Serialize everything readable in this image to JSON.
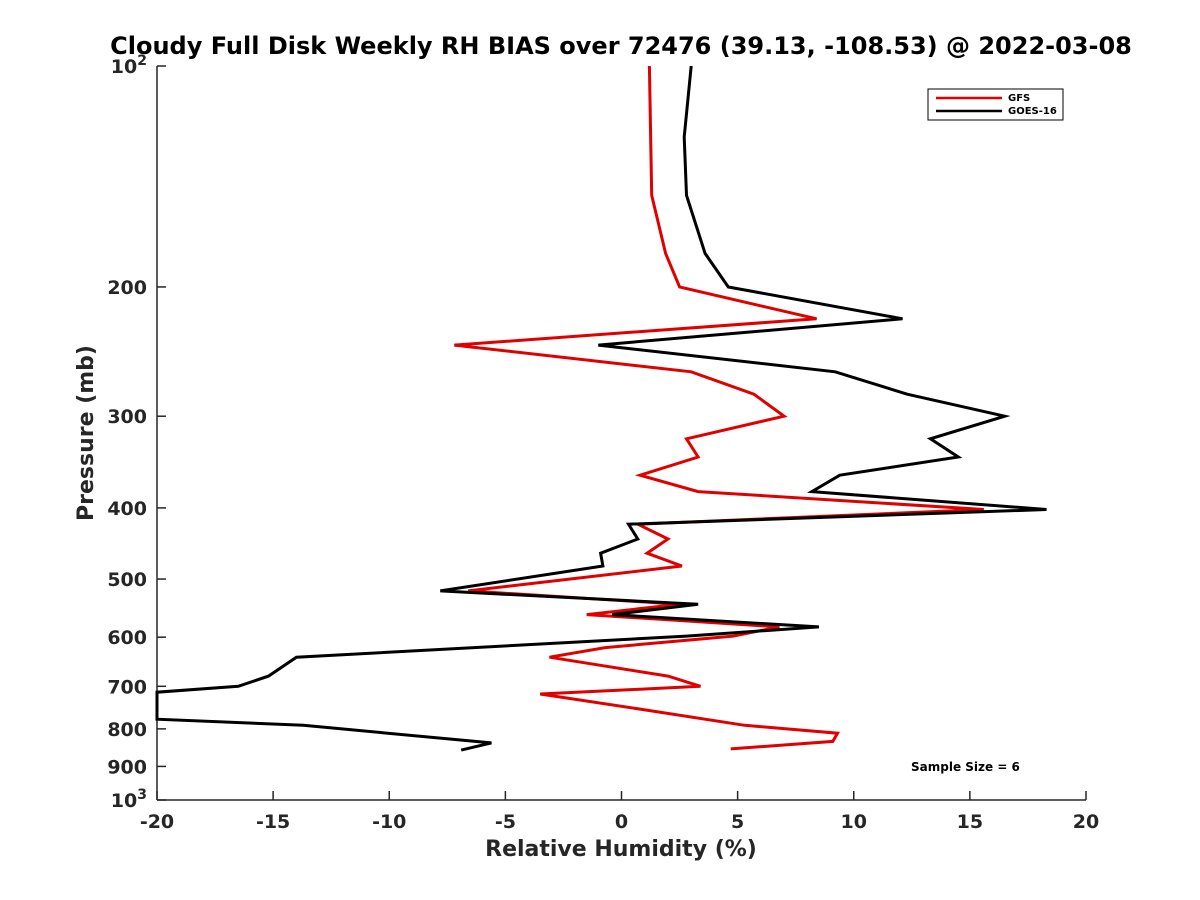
{
  "chart_data": {
    "type": "line",
    "title": "Cloudy Full Disk Weekly RH BIAS over 72476 (39.13, -108.53) @ 2022-03-08",
    "xlabel": "Relative Humidity (%)",
    "ylabel": "Pressure (mb)",
    "xlim": [
      -20,
      20
    ],
    "ylim": [
      100,
      1000
    ],
    "y_scale": "log",
    "y_reversed": true,
    "x_ticks": [
      "-20",
      "-15",
      "-10",
      "-5",
      "0",
      "5",
      "10",
      "15",
      "20"
    ],
    "y_ticks": [
      {
        "value": 100,
        "base": "10",
        "exp": "2"
      },
      {
        "value": 200,
        "label": "200"
      },
      {
        "value": 300,
        "label": "300"
      },
      {
        "value": 400,
        "label": "400"
      },
      {
        "value": 500,
        "label": "500"
      },
      {
        "value": 600,
        "label": "600"
      },
      {
        "value": 700,
        "label": "700"
      },
      {
        "value": 800,
        "label": "800"
      },
      {
        "value": 900,
        "label": "900"
      },
      {
        "value": 1000,
        "base": "10",
        "exp": "3"
      }
    ],
    "grid": false,
    "legend_position": "top-right",
    "series": [
      {
        "name": "GFS",
        "color": "#e00000",
        "points": [
          [
            1.2,
            100
          ],
          [
            1.3,
            150
          ],
          [
            1.9,
            180
          ],
          [
            2.5,
            200
          ],
          [
            8.4,
            221
          ],
          [
            -7.2,
            240
          ],
          [
            3.0,
            261
          ],
          [
            5.7,
            280
          ],
          [
            7.0,
            300
          ],
          [
            2.8,
            322
          ],
          [
            3.3,
            341
          ],
          [
            0.8,
            361
          ],
          [
            3.3,
            380
          ],
          [
            15.6,
            402
          ],
          [
            0.7,
            421
          ],
          [
            2.0,
            441
          ],
          [
            1.1,
            461
          ],
          [
            2.6,
            480
          ],
          [
            -6.6,
            519
          ],
          [
            2.5,
            541
          ],
          [
            -1.5,
            559
          ],
          [
            6.8,
            581
          ],
          [
            4.8,
            598
          ],
          [
            -0.7,
            620
          ],
          [
            -3.1,
            639
          ],
          [
            2.0,
            678
          ],
          [
            3.4,
            700
          ],
          [
            -3.5,
            717
          ],
          [
            0.8,
            752
          ],
          [
            5.3,
            791
          ],
          [
            9.3,
            811
          ],
          [
            9.1,
            832
          ],
          [
            4.7,
            852
          ]
        ]
      },
      {
        "name": "GOES-16",
        "color": "#000000",
        "points": [
          [
            3.0,
            100
          ],
          [
            2.7,
            125
          ],
          [
            2.8,
            150
          ],
          [
            3.6,
            180
          ],
          [
            4.6,
            200
          ],
          [
            12.1,
            221
          ],
          [
            -1.0,
            240
          ],
          [
            9.2,
            261
          ],
          [
            12.3,
            280
          ],
          [
            16.5,
            300
          ],
          [
            13.3,
            322
          ],
          [
            14.5,
            341
          ],
          [
            9.4,
            361
          ],
          [
            8.2,
            380
          ],
          [
            18.3,
            402
          ],
          [
            0.3,
            421
          ],
          [
            0.7,
            441
          ],
          [
            -0.9,
            461
          ],
          [
            -0.8,
            480
          ],
          [
            -7.8,
            519
          ],
          [
            3.3,
            541
          ],
          [
            -0.4,
            559
          ],
          [
            8.5,
            581
          ],
          [
            2.8,
            598
          ],
          [
            -14.0,
            639
          ],
          [
            -15.2,
            678
          ],
          [
            -16.5,
            700
          ],
          [
            -20.0,
            713
          ],
          [
            -20.0,
            776
          ],
          [
            -13.7,
            791
          ],
          [
            -5.6,
            836
          ],
          [
            -6.9,
            855
          ]
        ]
      }
    ],
    "annotation": "Sample Size = 6"
  }
}
